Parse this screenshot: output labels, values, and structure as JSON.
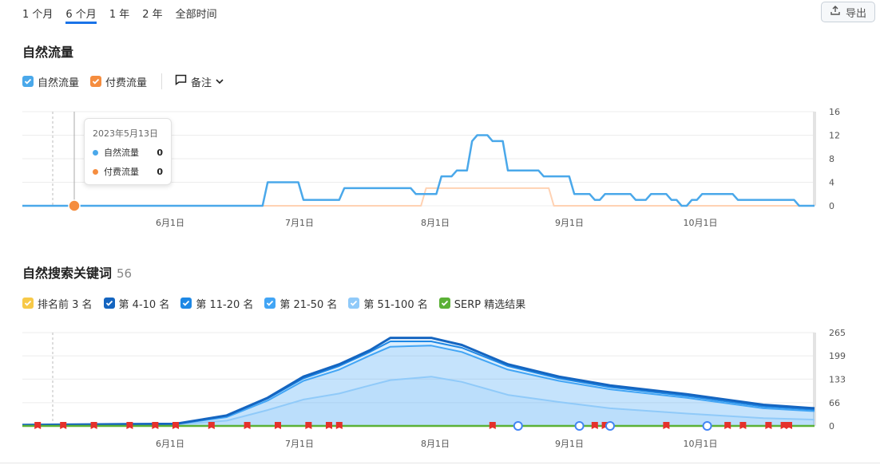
{
  "tabs": [
    "1 个月",
    "6 个月",
    "1 年",
    "2 年",
    "全部时间"
  ],
  "active_tab": 1,
  "export_label": "导出",
  "traffic": {
    "title": "自然流量",
    "legend": {
      "organic": "自然流量",
      "paid": "付费流量",
      "notes": "备注"
    },
    "tooltip": {
      "date": "2023年5月13日",
      "organic_label": "自然流量",
      "organic_value": "0",
      "paid_label": "付费流量",
      "paid_value": "0"
    }
  },
  "keywords": {
    "title": "自然搜索关键词",
    "count": "56",
    "legend": [
      "排名前 3 名",
      "第 4-10 名",
      "第 11-20 名",
      "第 21-50 名",
      "第 51-100 名",
      "SERP 精选结果"
    ]
  },
  "colors": {
    "organic": "#4aa8ea",
    "paid": "#f58d3f",
    "top3": "#f7c948",
    "r4_10": "#1565c0",
    "r11_20": "#1e88e5",
    "r21_50": "#42a5f5",
    "r51_100": "#90caf9",
    "serp": "#5bb136",
    "flag": "#e5312b"
  },
  "chart_data": [
    {
      "type": "line",
      "x_axis_labels": [
        "6月1日",
        "7月1日",
        "8月1日",
        "9月1日",
        "10月1日"
      ],
      "ylim": [
        0,
        16
      ],
      "yticks": [
        0,
        4,
        8,
        12,
        16
      ],
      "series": [
        {
          "name": "自然流量",
          "values": [
            [
              0,
              0
            ],
            [
              47,
              0
            ],
            [
              48,
              4
            ],
            [
              54,
              4
            ],
            [
              55,
              1
            ],
            [
              62,
              1
            ],
            [
              63,
              3
            ],
            [
              76,
              3
            ],
            [
              77,
              2
            ],
            [
              81,
              2
            ],
            [
              82,
              5
            ],
            [
              84,
              5
            ],
            [
              85,
              6
            ],
            [
              87,
              6
            ],
            [
              88,
              11
            ],
            [
              89,
              12
            ],
            [
              91,
              12
            ],
            [
              92,
              11
            ],
            [
              94,
              11
            ],
            [
              95,
              6
            ],
            [
              101,
              6
            ],
            [
              102,
              5
            ],
            [
              107,
              5
            ],
            [
              108,
              2
            ],
            [
              111,
              2
            ],
            [
              112,
              1
            ],
            [
              113,
              1
            ],
            [
              114,
              2
            ],
            [
              119,
              2
            ],
            [
              120,
              1
            ],
            [
              122,
              1
            ],
            [
              123,
              2
            ],
            [
              126,
              2
            ],
            [
              127,
              1
            ],
            [
              128,
              1
            ],
            [
              129,
              0
            ],
            [
              130,
              0
            ],
            [
              131,
              1
            ],
            [
              132,
              1
            ],
            [
              133,
              2
            ],
            [
              139,
              2
            ],
            [
              140,
              1
            ],
            [
              151,
              1
            ],
            [
              152,
              0
            ],
            [
              155,
              0
            ]
          ]
        },
        {
          "name": "付费流量",
          "values": [
            [
              0,
              0
            ],
            [
              78,
              0
            ],
            [
              79,
              3
            ],
            [
              103,
              3
            ],
            [
              104,
              0
            ],
            [
              155,
              0
            ]
          ]
        }
      ]
    },
    {
      "type": "area",
      "x_axis_labels": [
        "6月1日",
        "7月1日",
        "8月1日",
        "9月1日",
        "10月1日"
      ],
      "ylim": [
        0,
        265
      ],
      "yticks": [
        0,
        66,
        133,
        199,
        265
      ],
      "series": [
        {
          "name": "第 4-10 名",
          "values": [
            [
              0,
              3
            ],
            [
              20,
              5
            ],
            [
              30,
              6
            ],
            [
              40,
              30
            ],
            [
              48,
              80
            ],
            [
              55,
              140
            ],
            [
              62,
              175
            ],
            [
              68,
              215
            ],
            [
              72,
              250
            ],
            [
              80,
              250
            ],
            [
              86,
              230
            ],
            [
              95,
              175
            ],
            [
              105,
              140
            ],
            [
              115,
              115
            ],
            [
              130,
              90
            ],
            [
              145,
              60
            ],
            [
              155,
              50
            ]
          ]
        },
        {
          "name": "第 11-20 名",
          "values": [
            [
              0,
              3
            ],
            [
              20,
              5
            ],
            [
              30,
              6
            ],
            [
              40,
              28
            ],
            [
              48,
              78
            ],
            [
              55,
              135
            ],
            [
              62,
              170
            ],
            [
              68,
              210
            ],
            [
              72,
              240
            ],
            [
              80,
              240
            ],
            [
              86,
              222
            ],
            [
              95,
              170
            ],
            [
              105,
              135
            ],
            [
              115,
              110
            ],
            [
              130,
              85
            ],
            [
              145,
              55
            ],
            [
              155,
              46
            ]
          ]
        },
        {
          "name": "第 21-50 名",
          "values": [
            [
              0,
              2
            ],
            [
              20,
              4
            ],
            [
              30,
              5
            ],
            [
              40,
              25
            ],
            [
              48,
              72
            ],
            [
              55,
              128
            ],
            [
              62,
              160
            ],
            [
              68,
              200
            ],
            [
              72,
              225
            ],
            [
              80,
              228
            ],
            [
              86,
              210
            ],
            [
              95,
              160
            ],
            [
              105,
              128
            ],
            [
              115,
              104
            ],
            [
              130,
              80
            ],
            [
              145,
              50
            ],
            [
              155,
              42
            ]
          ]
        },
        {
          "name": "第 51-100 名",
          "values": [
            [
              0,
              1
            ],
            [
              20,
              2
            ],
            [
              30,
              4
            ],
            [
              40,
              15
            ],
            [
              48,
              45
            ],
            [
              55,
              75
            ],
            [
              62,
              92
            ],
            [
              68,
              115
            ],
            [
              72,
              130
            ],
            [
              80,
              140
            ],
            [
              86,
              125
            ],
            [
              95,
              88
            ],
            [
              105,
              68
            ],
            [
              115,
              50
            ],
            [
              130,
              35
            ],
            [
              145,
              22
            ],
            [
              155,
              18
            ]
          ]
        }
      ],
      "markers": {
        "flags_x": [
          3,
          8,
          14,
          21,
          26,
          30,
          37,
          44,
          50,
          56,
          60,
          62,
          92,
          112,
          114,
          126,
          138,
          141,
          146,
          149,
          150
        ],
        "google_x": [
          97,
          109,
          115,
          134
        ]
      }
    }
  ]
}
